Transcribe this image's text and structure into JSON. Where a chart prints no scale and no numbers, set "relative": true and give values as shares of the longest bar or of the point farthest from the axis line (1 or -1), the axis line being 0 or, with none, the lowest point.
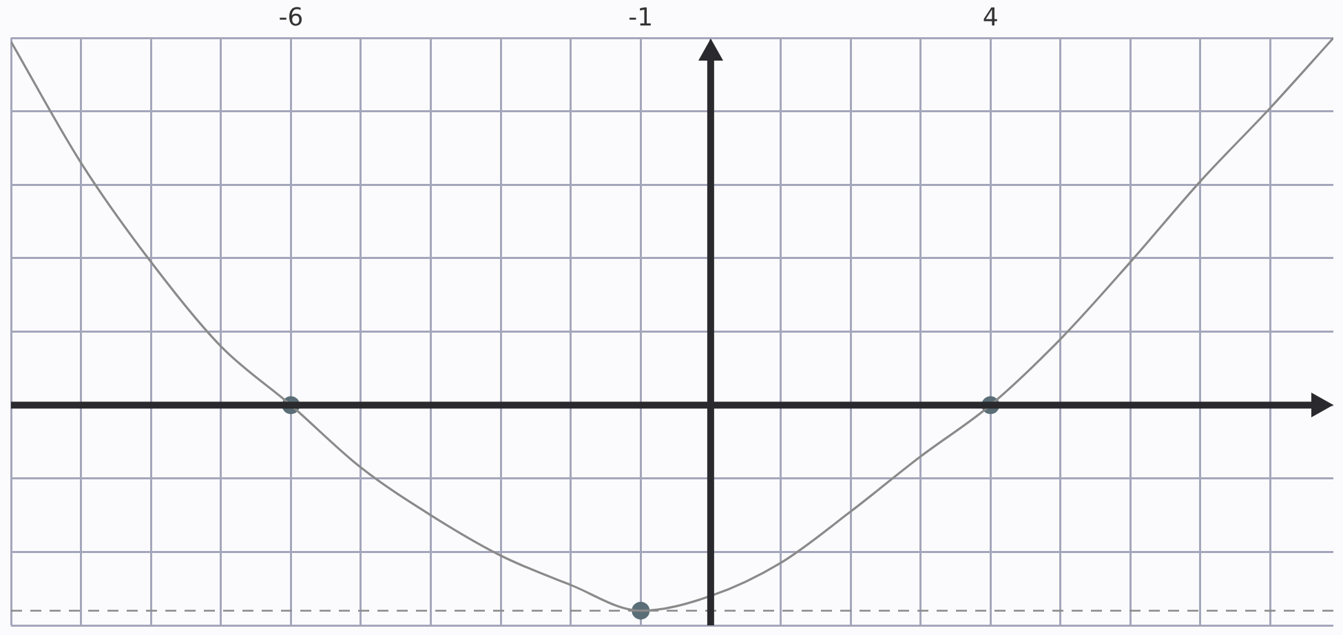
{
  "chart_data": {
    "type": "line",
    "relative": true,
    "x": [
      -10,
      -9,
      -8,
      -7,
      -6,
      -5,
      -4,
      -3,
      -2,
      -1,
      0,
      1,
      2,
      3,
      4,
      5,
      6,
      7,
      8,
      8.9
    ],
    "series": [
      {
        "color": "#8a8a8a",
        "marker": "none",
        "values": [
          0.99,
          0.66,
          0.39,
          0.16,
          0,
          -0.17,
          -0.3,
          -0.41,
          -0.49,
          -0.56,
          -0.52,
          -0.43,
          -0.29,
          -0.14,
          0,
          0.18,
          0.39,
          0.61,
          0.81,
          1
        ]
      },
      {
        "type": "scatter",
        "color": "#5b6e78",
        "marker": "circle",
        "x": [
          -6,
          -1,
          4
        ],
        "values": [
          0,
          -0.56,
          0
        ]
      }
    ],
    "xlim": [
      -10,
      8.9
    ],
    "xticks": [
      {
        "value": -10,
        "label": null
      },
      {
        "value": -9,
        "label": null
      },
      {
        "value": -8,
        "label": null
      },
      {
        "value": -7,
        "label": null
      },
      -6,
      {
        "value": -5,
        "label": null
      },
      {
        "value": -4,
        "label": null
      },
      {
        "value": -3,
        "label": null
      },
      {
        "value": -2,
        "label": null
      },
      -1,
      {
        "value": 0,
        "label": null
      },
      {
        "value": 1,
        "label": null
      },
      {
        "value": 2,
        "label": null
      },
      {
        "value": 3,
        "label": null
      },
      4,
      {
        "value": 5,
        "label": null
      },
      {
        "value": 6,
        "label": null
      },
      {
        "value": 7,
        "label": null
      },
      {
        "value": 8,
        "label": null
      }
    ],
    "ref_lines": [
      {
        "axis": "y",
        "value": -0.56,
        "label": null,
        "line_style": "dashed",
        "color": "#8a8a8a"
      }
    ],
    "grid": true,
    "legend": false,
    "tick_labels": "x"
  }
}
